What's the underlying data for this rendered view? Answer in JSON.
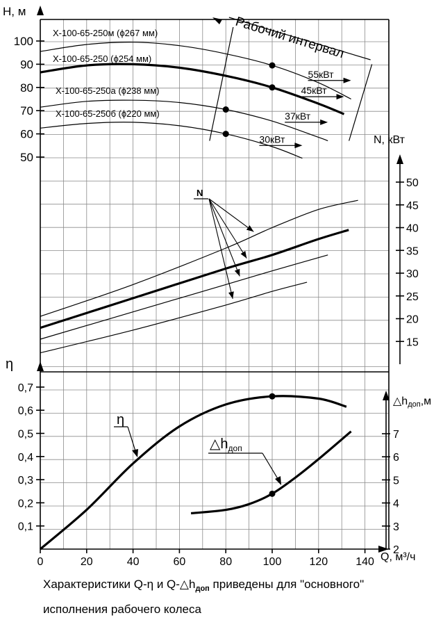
{
  "chart_data": {
    "type": "line",
    "x": {
      "label": "Q, м³/ч",
      "range": [
        0,
        140
      ],
      "ticks": [
        0,
        20,
        40,
        60,
        80,
        100,
        120,
        140
      ],
      "tick_labels": [
        "0",
        "20",
        "40",
        "60",
        "80",
        "100",
        "120",
        "140"
      ]
    },
    "axes": {
      "H": {
        "label": "Н, м",
        "ticks": [
          50,
          60,
          70,
          80,
          90,
          100
        ],
        "tick_labels": [
          "50",
          "60",
          "70",
          "80",
          "90",
          "100"
        ]
      },
      "N": {
        "label": "N, кВт",
        "ticks": [
          15,
          20,
          25,
          30,
          35,
          40,
          45,
          50
        ],
        "tick_labels": [
          "15",
          "20",
          "25",
          "30",
          "35",
          "40",
          "45",
          "50"
        ]
      },
      "eta": {
        "label": "η",
        "ticks": [
          0.1,
          0.2,
          0.3,
          0.4,
          0.5,
          0.6,
          0.7
        ],
        "tick_labels": [
          "0,1",
          "0,2",
          "0,3",
          "0,4",
          "0,5",
          "0,6",
          "0,7"
        ]
      },
      "dh": {
        "label": "△h",
        "label_sub": "доп",
        "label_unit": ",м",
        "ticks": [
          2,
          3,
          4,
          5,
          6,
          7
        ],
        "tick_labels": [
          "2",
          "3",
          "4",
          "5",
          "6",
          "7"
        ]
      }
    },
    "grid": true,
    "head_curves": [
      {
        "name": "Х-100-65-250м (ϕ267 мм)",
        "thick": false,
        "points": [
          [
            0,
            95.5
          ],
          [
            20,
            98.5
          ],
          [
            40,
            99.5
          ],
          [
            60,
            98
          ],
          [
            80,
            94.5
          ],
          [
            100,
            89.5
          ],
          [
            120,
            82
          ],
          [
            134,
            75
          ]
        ],
        "marker": [
          100,
          89.5
        ]
      },
      {
        "name": "Х-100-65-250 (ϕ254 мм)",
        "thick": true,
        "points": [
          [
            0,
            86.5
          ],
          [
            20,
            89.5
          ],
          [
            40,
            90
          ],
          [
            60,
            88.5
          ],
          [
            80,
            85
          ],
          [
            100,
            80
          ],
          [
            120,
            73
          ],
          [
            131,
            68.5
          ]
        ],
        "marker": [
          100,
          80
        ]
      },
      {
        "name": "Х-100-65-250а (ϕ238 мм)",
        "thick": false,
        "points": [
          [
            0,
            71.5
          ],
          [
            20,
            74
          ],
          [
            40,
            74.5
          ],
          [
            60,
            73.5
          ],
          [
            80,
            70.5
          ],
          [
            100,
            65.5
          ],
          [
            120,
            58.5
          ],
          [
            124,
            57
          ]
        ],
        "marker": [
          80,
          70.5
        ]
      },
      {
        "name": "Х-100-65-250б (ϕ220 мм)",
        "thick": false,
        "points": [
          [
            0,
            62.5
          ],
          [
            20,
            64.5
          ],
          [
            40,
            65
          ],
          [
            60,
            63.5
          ],
          [
            80,
            60
          ],
          [
            100,
            54.5
          ],
          [
            113,
            49.5
          ]
        ],
        "marker": [
          80,
          60
        ]
      }
    ],
    "working_interval_label": "Рабочий интервал",
    "working_interval_Q": [
      73,
      143
    ],
    "power_labels": [
      {
        "text": "55кВт",
        "at": [
          134,
          83
        ]
      },
      {
        "text": "45кВт",
        "at": [
          131,
          76
        ]
      },
      {
        "text": "37кВт",
        "at": [
          124,
          65
        ]
      },
      {
        "text": "30кВт",
        "at": [
          113,
          55
        ]
      }
    ],
    "power_curves_label": "N",
    "power_curves": [
      {
        "thick": false,
        "points": [
          [
            0,
            20.5
          ],
          [
            40,
            27.5
          ],
          [
            80,
            35.5
          ],
          [
            100,
            40
          ],
          [
            120,
            44
          ],
          [
            137,
            46
          ]
        ]
      },
      {
        "thick": true,
        "points": [
          [
            0,
            18
          ],
          [
            40,
            24.5
          ],
          [
            80,
            31
          ],
          [
            100,
            34
          ],
          [
            120,
            37.5
          ],
          [
            133,
            39.5
          ]
        ]
      },
      {
        "thick": false,
        "points": [
          [
            0,
            15.5
          ],
          [
            40,
            21.5
          ],
          [
            80,
            27.5
          ],
          [
            100,
            30.5
          ],
          [
            124,
            34
          ]
        ]
      },
      {
        "thick": false,
        "points": [
          [
            0,
            12.5
          ],
          [
            40,
            17.5
          ],
          [
            80,
            23
          ],
          [
            100,
            26
          ],
          [
            115,
            28
          ]
        ]
      }
    ],
    "efficiency_curve": {
      "name": "η",
      "points": [
        [
          0,
          0
        ],
        [
          20,
          0.17
        ],
        [
          40,
          0.37
        ],
        [
          60,
          0.53
        ],
        [
          80,
          0.625
        ],
        [
          100,
          0.66
        ],
        [
          120,
          0.65
        ],
        [
          132,
          0.615
        ]
      ],
      "marker": [
        100,
        0.66
      ]
    },
    "npsh_curve": {
      "name": "△h",
      "name_sub": "доп",
      "points": [
        [
          65,
          3.55
        ],
        [
          80,
          3.7
        ],
        [
          90,
          3.95
        ],
        [
          100,
          4.4
        ],
        [
          110,
          5.1
        ],
        [
          120,
          5.9
        ],
        [
          134,
          7.1
        ]
      ],
      "marker": [
        100,
        4.4
      ]
    }
  },
  "caption": {
    "line1_a": "Характеристики Q-η и Q-△h",
    "line1_sub": "доп",
    "line1_b": " приведены для \"основного\"",
    "line2": "исполнения рабочего колеса"
  }
}
